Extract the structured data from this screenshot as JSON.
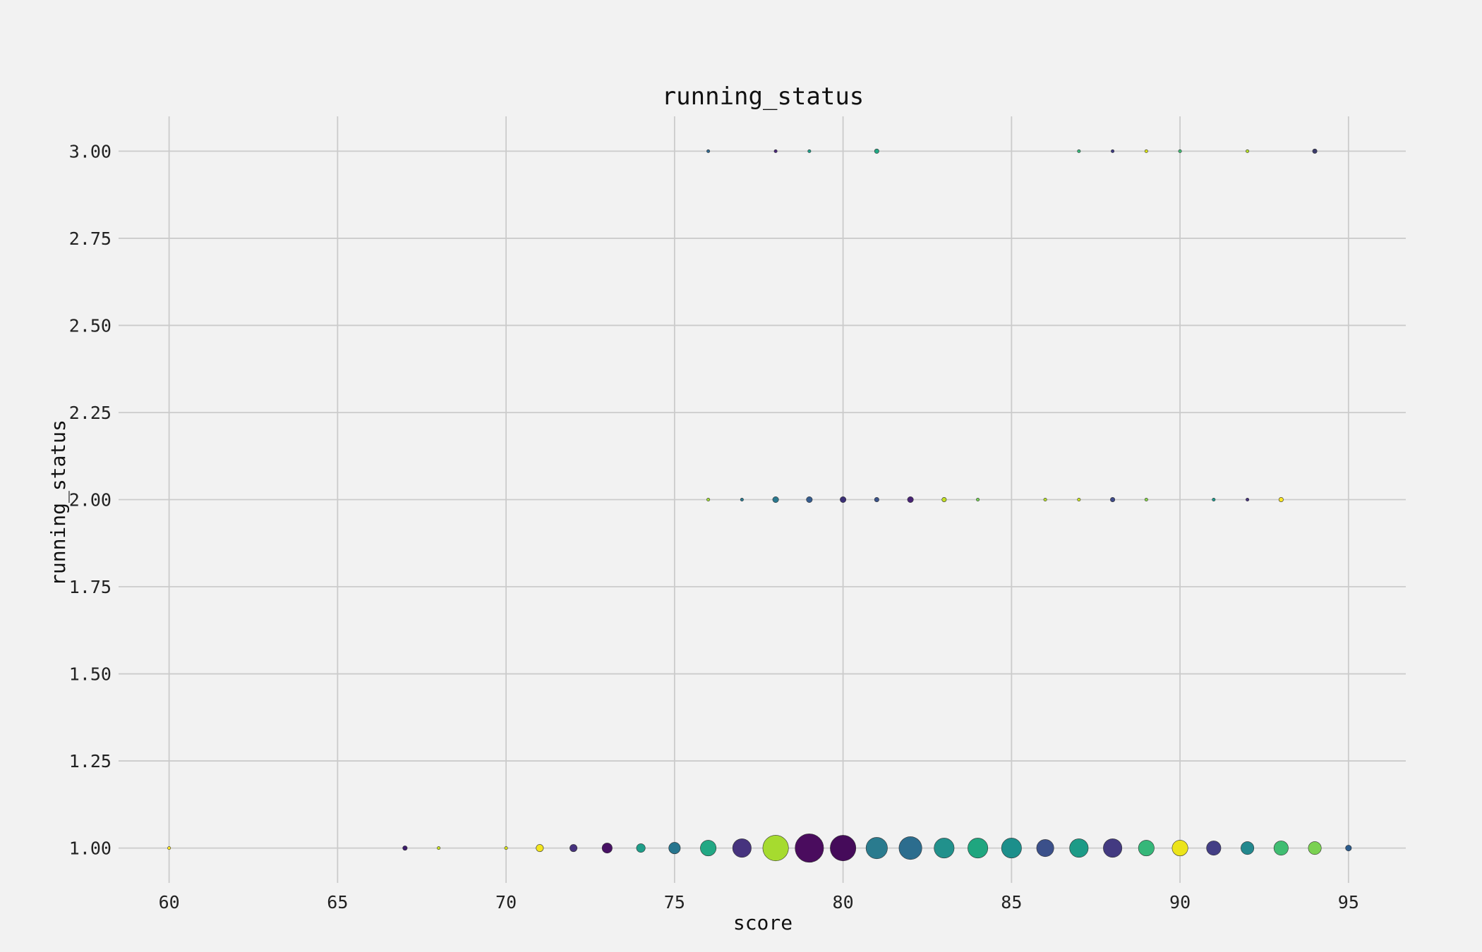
{
  "chart_data": {
    "type": "scatter",
    "title": "running_status",
    "xlabel": "score",
    "ylabel": "running_status",
    "xlim": [
      58.5,
      96.7
    ],
    "ylim": [
      0.9,
      3.1
    ],
    "xticks": [
      60,
      65,
      70,
      75,
      80,
      85,
      90,
      95
    ],
    "xtick_labels": [
      "60",
      "65",
      "70",
      "75",
      "80",
      "85",
      "90",
      "95"
    ],
    "yticks": [
      1.0,
      1.25,
      1.5,
      1.75,
      2.0,
      2.25,
      2.5,
      2.75,
      3.0
    ],
    "ytick_labels": [
      "1.00",
      "1.25",
      "1.50",
      "1.75",
      "2.00",
      "2.25",
      "2.50",
      "2.75",
      "3.00"
    ],
    "grid": true,
    "colormap": "viridis",
    "points": [
      {
        "x": 60,
        "y": 1,
        "size": 1,
        "color": "#fde725"
      },
      {
        "x": 67,
        "y": 1,
        "size": 2,
        "color": "#3b1c6b"
      },
      {
        "x": 68,
        "y": 1,
        "size": 1,
        "color": "#c8e020"
      },
      {
        "x": 70,
        "y": 1,
        "size": 1,
        "color": "#d8e219"
      },
      {
        "x": 71,
        "y": 1,
        "size": 4,
        "color": "#f4e61e"
      },
      {
        "x": 72,
        "y": 1,
        "size": 4,
        "color": "#46327e"
      },
      {
        "x": 73,
        "y": 1,
        "size": 6,
        "color": "#471164"
      },
      {
        "x": 74,
        "y": 1,
        "size": 5,
        "color": "#1f9e89"
      },
      {
        "x": 75,
        "y": 1,
        "size": 7,
        "color": "#26758e"
      },
      {
        "x": 76,
        "y": 1,
        "size": 10,
        "color": "#22a884"
      },
      {
        "x": 77,
        "y": 1,
        "size": 12,
        "color": "#46337e"
      },
      {
        "x": 78,
        "y": 1,
        "size": 17,
        "color": "#a6db2f"
      },
      {
        "x": 79,
        "y": 1,
        "size": 19,
        "color": "#4a0c5e"
      },
      {
        "x": 80,
        "y": 1,
        "size": 17,
        "color": "#450b5a"
      },
      {
        "x": 81,
        "y": 1,
        "size": 14,
        "color": "#2a7b8e"
      },
      {
        "x": 82,
        "y": 1,
        "size": 15,
        "color": "#2c6d8e"
      },
      {
        "x": 83,
        "y": 1,
        "size": 13,
        "color": "#21918c"
      },
      {
        "x": 84,
        "y": 1,
        "size": 13,
        "color": "#1fa67f"
      },
      {
        "x": 85,
        "y": 1,
        "size": 13,
        "color": "#1c8f8b"
      },
      {
        "x": 86,
        "y": 1,
        "size": 11,
        "color": "#3b508a"
      },
      {
        "x": 87,
        "y": 1,
        "size": 12,
        "color": "#1d9b87"
      },
      {
        "x": 88,
        "y": 1,
        "size": 12,
        "color": "#433a81"
      },
      {
        "x": 89,
        "y": 1,
        "size": 10,
        "color": "#35b779"
      },
      {
        "x": 90,
        "y": 1,
        "size": 10,
        "color": "#ece41a"
      },
      {
        "x": 91,
        "y": 1,
        "size": 9,
        "color": "#433e85"
      },
      {
        "x": 92,
        "y": 1,
        "size": 8,
        "color": "#23888e"
      },
      {
        "x": 93,
        "y": 1,
        "size": 9,
        "color": "#40bd72"
      },
      {
        "x": 94,
        "y": 1,
        "size": 8,
        "color": "#7ad151"
      },
      {
        "x": 95,
        "y": 1,
        "size": 3,
        "color": "#2b5b8c"
      },
      {
        "x": 76,
        "y": 2,
        "size": 1,
        "color": "#a0da39"
      },
      {
        "x": 77,
        "y": 2,
        "size": 1,
        "color": "#2a788e"
      },
      {
        "x": 78,
        "y": 2,
        "size": 3,
        "color": "#2a788e"
      },
      {
        "x": 79,
        "y": 2,
        "size": 3,
        "color": "#365c8d"
      },
      {
        "x": 80,
        "y": 2,
        "size": 3,
        "color": "#3b2f75"
      },
      {
        "x": 81,
        "y": 2,
        "size": 2,
        "color": "#3a538b"
      },
      {
        "x": 82,
        "y": 2,
        "size": 3,
        "color": "#482474"
      },
      {
        "x": 83,
        "y": 2,
        "size": 2,
        "color": "#c2df23"
      },
      {
        "x": 84,
        "y": 2,
        "size": 1,
        "color": "#75d054"
      },
      {
        "x": 86,
        "y": 2,
        "size": 1,
        "color": "#b5de2b"
      },
      {
        "x": 87,
        "y": 2,
        "size": 1,
        "color": "#c8e020"
      },
      {
        "x": 88,
        "y": 2,
        "size": 2,
        "color": "#3e4a89"
      },
      {
        "x": 89,
        "y": 2,
        "size": 1,
        "color": "#86d549"
      },
      {
        "x": 91,
        "y": 2,
        "size": 1,
        "color": "#1f988b"
      },
      {
        "x": 92,
        "y": 2,
        "size": 1,
        "color": "#46327e"
      },
      {
        "x": 93,
        "y": 2,
        "size": 2,
        "color": "#fde725"
      },
      {
        "x": 76,
        "y": 3,
        "size": 1,
        "color": "#31688e"
      },
      {
        "x": 78,
        "y": 3,
        "size": 1,
        "color": "#482878"
      },
      {
        "x": 79,
        "y": 3,
        "size": 1,
        "color": "#1f9e89"
      },
      {
        "x": 81,
        "y": 3,
        "size": 2,
        "color": "#22a884"
      },
      {
        "x": 87,
        "y": 3,
        "size": 1,
        "color": "#35b779"
      },
      {
        "x": 88,
        "y": 3,
        "size": 1,
        "color": "#3e3a81"
      },
      {
        "x": 89,
        "y": 3,
        "size": 1,
        "color": "#d8e219"
      },
      {
        "x": 90,
        "y": 3,
        "size": 1,
        "color": "#40bd72"
      },
      {
        "x": 92,
        "y": 3,
        "size": 1,
        "color": "#b5de2b"
      },
      {
        "x": 94,
        "y": 3,
        "size": 2,
        "color": "#3b3b6b"
      }
    ]
  }
}
